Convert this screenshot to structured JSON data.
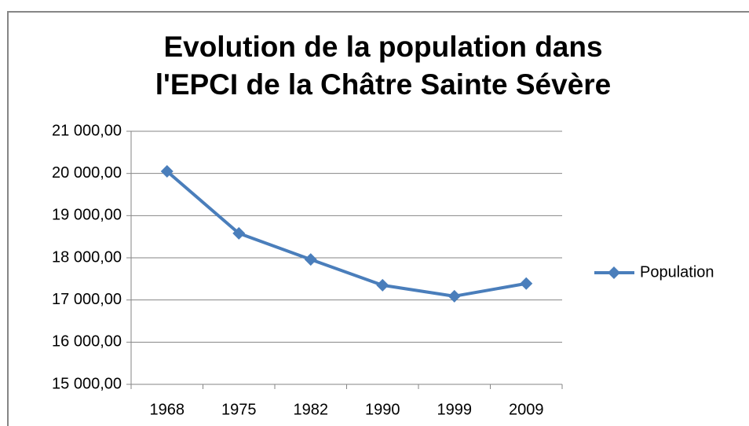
{
  "chart_data": {
    "type": "line",
    "title": [
      "Evolution de la population dans",
      "l'EPCI de la Châtre Sainte Sévère"
    ],
    "categories": [
      "1968",
      "1975",
      "1982",
      "1990",
      "1999",
      "2009"
    ],
    "series": [
      {
        "name": "Population",
        "color": "#4a7ebb",
        "values": [
          20050,
          18580,
          17960,
          17350,
          17090,
          17390
        ]
      }
    ],
    "ylim": [
      15000,
      21000
    ],
    "yticks": [
      {
        "value": 15000,
        "label": "15 000,00"
      },
      {
        "value": 16000,
        "label": "16 000,00"
      },
      {
        "value": 17000,
        "label": "17 000,00"
      },
      {
        "value": 18000,
        "label": "18 000,00"
      },
      {
        "value": 19000,
        "label": "19 000,00"
      },
      {
        "value": 20000,
        "label": "20 000,00"
      },
      {
        "value": 21000,
        "label": "21 000,00"
      }
    ],
    "grid": true,
    "legend": "right"
  }
}
